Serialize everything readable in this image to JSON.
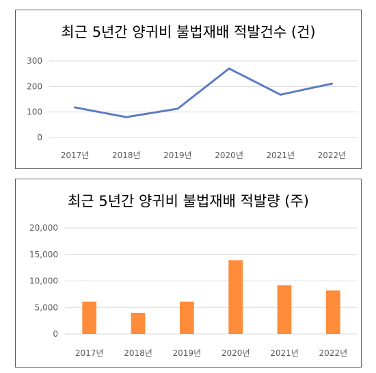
{
  "colors": {
    "line": "#5b7cc4",
    "bar": "#ff8c3a",
    "grid": "#d9d9d9",
    "text": "#595959",
    "border": "#595959"
  },
  "chart_data": [
    {
      "type": "line",
      "title": "최근 5년간 양귀비 불법재배 적발건수 (건)",
      "categories": [
        "2017년",
        "2018년",
        "2019년",
        "2020년",
        "2021년",
        "2022년"
      ],
      "values": [
        118,
        80,
        113,
        270,
        168,
        211
      ],
      "ylim": [
        0,
        300
      ],
      "yticks": [
        "0",
        "100",
        "200",
        "300"
      ],
      "grid": true
    },
    {
      "type": "bar",
      "title": "최근 5년간 양귀비 불법재배  적발량 (주)",
      "categories": [
        "2017년",
        "2018년",
        "2019년",
        "2020년",
        "2021년",
        "2022년"
      ],
      "values": [
        6100,
        4000,
        6100,
        13900,
        9200,
        8200
      ],
      "ylim": [
        0,
        20000
      ],
      "yticks": [
        "0",
        "5,000",
        "10,000",
        "15,000",
        "20,000"
      ],
      "grid": true
    }
  ]
}
